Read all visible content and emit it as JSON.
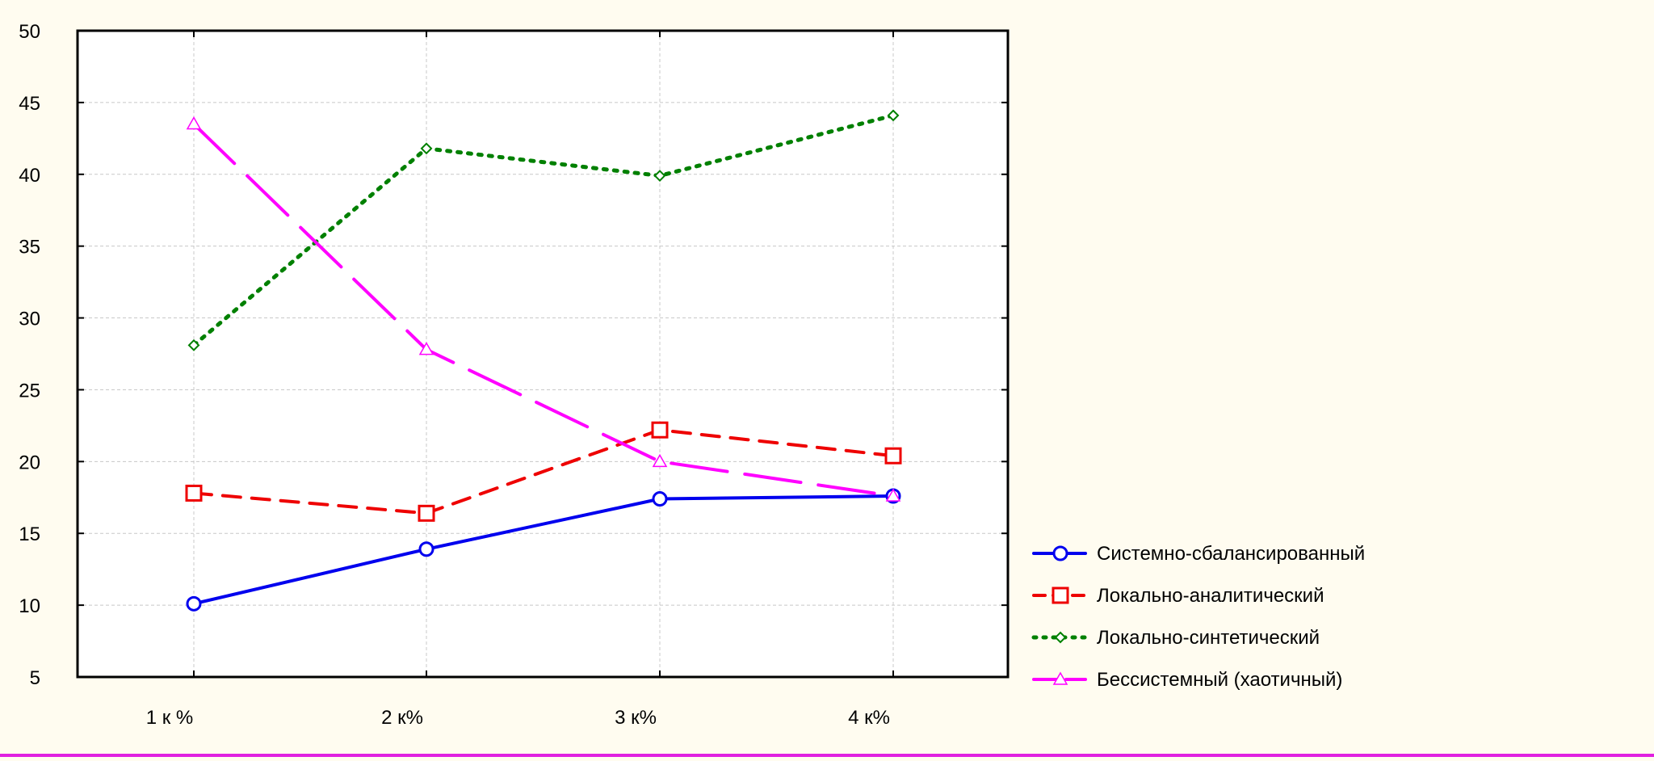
{
  "chart_data": {
    "type": "line",
    "title": "",
    "xlabel": "",
    "ylabel": "",
    "categories": [
      "1 к %",
      "2 к%",
      "3 к%",
      "4 к%"
    ],
    "ylim": [
      5,
      50
    ],
    "yticks": [
      5,
      10,
      15,
      20,
      25,
      30,
      35,
      40,
      45,
      50
    ],
    "grid": true,
    "legend_position": "bottom-right outside plot",
    "series": [
      {
        "name": "Системно-сбалансированный",
        "values": [
          10.1,
          13.9,
          17.4,
          17.6
        ],
        "color": "#0000ee",
        "style": "solid",
        "marker": "circle"
      },
      {
        "name": "Локально-аналитический",
        "values": [
          17.8,
          16.4,
          22.2,
          20.4
        ],
        "color": "#ee0000",
        "style": "dashed",
        "marker": "square"
      },
      {
        "name": "Локально-синтетический",
        "values": [
          28.1,
          41.8,
          39.9,
          44.1
        ],
        "color": "#008000",
        "style": "dotted",
        "marker": "diamond"
      },
      {
        "name": "Бессистемный (хаотичный)",
        "values": [
          43.5,
          27.8,
          20.0,
          17.6
        ],
        "color": "#ff00ff",
        "style": "longdash",
        "marker": "triangle"
      }
    ]
  },
  "colors": {
    "background": "#fffcf0",
    "plot_background": "#ffffff",
    "bottom_border": "#e020e0"
  }
}
